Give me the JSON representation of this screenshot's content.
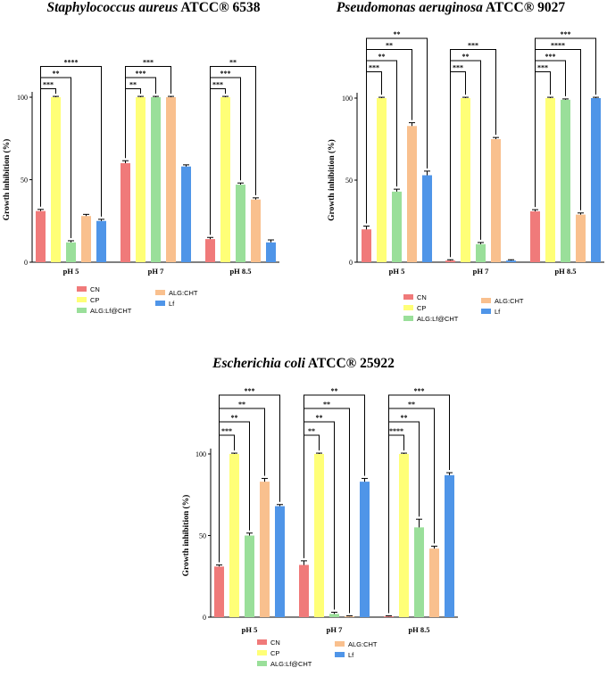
{
  "chart_data": [
    {
      "type": "bar",
      "title_italic": "Staphylococcus aureus",
      "title_plain": " ATCC® 6538",
      "ylabel": "Growth inhibition (%)",
      "ylim": [
        0,
        100
      ],
      "yticks": [
        "0",
        "50",
        "100"
      ],
      "categories": [
        "pH 5",
        "pH 7",
        "pH 8.5"
      ],
      "series": [
        {
          "name": "CN",
          "color": "#f07a7a",
          "values": [
            31,
            60,
            14
          ],
          "errors": [
            1,
            1.5,
            1
          ]
        },
        {
          "name": "CP",
          "color": "#ffff77",
          "values": [
            100,
            100,
            100
          ],
          "errors": [
            0.5,
            0.5,
            0.5
          ]
        },
        {
          "name": "ALG:Lf@CHT",
          "color": "#9adf9a",
          "values": [
            12,
            100,
            47
          ],
          "errors": [
            1,
            0.5,
            1
          ]
        },
        {
          "name": "ALG:CHT",
          "color": "#f9c08e",
          "values": [
            28,
            100,
            38
          ],
          "errors": [
            1,
            0.5,
            1
          ]
        },
        {
          "name": "Lf",
          "color": "#4f95e8",
          "values": [
            25,
            58,
            12
          ],
          "errors": [
            1,
            1,
            1.5
          ]
        }
      ],
      "significance": [
        [
          {
            "to": 1,
            "label": "***"
          },
          {
            "to": 2,
            "label": "**"
          },
          {
            "to": 4,
            "label": "****"
          }
        ],
        [
          {
            "to": 1,
            "label": "**"
          },
          {
            "to": 2,
            "label": "***"
          },
          {
            "to": 3,
            "label": "***"
          }
        ],
        [
          {
            "to": 1,
            "label": "***"
          },
          {
            "to": 2,
            "label": "***"
          },
          {
            "to": 3,
            "label": "**"
          }
        ]
      ],
      "legend_labels": [
        "CN",
        "CP",
        "ALG:Lf@CHT",
        "ALG:CHT",
        "Lf"
      ]
    },
    {
      "type": "bar",
      "title_italic": "Pseudomonas aeruginosa",
      "title_plain": " ATCC® 9027",
      "ylabel": "Growth inhibition (%)",
      "ylim": [
        0,
        100
      ],
      "yticks": [
        "0",
        "50",
        "100"
      ],
      "categories": [
        "pH 5",
        "pH 7",
        "pH 8.5"
      ],
      "series": [
        {
          "name": "CN",
          "color": "#f07a7a",
          "values": [
            20,
            1,
            31
          ],
          "errors": [
            2,
            0.5,
            1
          ]
        },
        {
          "name": "CP",
          "color": "#ffff77",
          "values": [
            100,
            100,
            100
          ],
          "errors": [
            0.5,
            0.5,
            0.5
          ]
        },
        {
          "name": "ALG:Lf@CHT",
          "color": "#9adf9a",
          "values": [
            43,
            11,
            99
          ],
          "errors": [
            1.5,
            1,
            0.5
          ]
        },
        {
          "name": "ALG:CHT",
          "color": "#f9c08e",
          "values": [
            83,
            75,
            29
          ],
          "errors": [
            2,
            1,
            1
          ]
        },
        {
          "name": "Lf",
          "color": "#4f95e8",
          "values": [
            53,
            1,
            100
          ],
          "errors": [
            2.5,
            0.5,
            0.5
          ]
        }
      ],
      "significance": [
        [
          {
            "to": 1,
            "label": "***"
          },
          {
            "to": 2,
            "label": "**"
          },
          {
            "to": 3,
            "label": "**"
          },
          {
            "to": 4,
            "label": "**"
          }
        ],
        [
          {
            "to": 1,
            "label": "***"
          },
          {
            "to": 2,
            "label": "**"
          },
          {
            "to": 3,
            "label": "***"
          }
        ],
        [
          {
            "to": 1,
            "label": "***"
          },
          {
            "to": 2,
            "label": "***"
          },
          {
            "to": 3,
            "label": "****"
          },
          {
            "to": 4,
            "label": "***"
          }
        ]
      ],
      "legend_labels": [
        "CN",
        "CP",
        "ALG:Lf@CHT",
        "ALG:CHT",
        "Lf"
      ]
    },
    {
      "type": "bar",
      "title_italic": "Escherichia coli",
      "title_plain": " ATCC® 25922",
      "ylabel": "Growth inhibition (%)",
      "ylim": [
        0,
        100
      ],
      "yticks": [
        "0",
        "50",
        "100"
      ],
      "categories": [
        "pH 5",
        "pH 7",
        "pH 8.5"
      ],
      "series": [
        {
          "name": "CN",
          "color": "#f07a7a",
          "values": [
            31,
            32,
            0.5
          ],
          "errors": [
            1,
            2.5,
            0.3
          ]
        },
        {
          "name": "CP",
          "color": "#ffff77",
          "values": [
            100,
            100,
            100
          ],
          "errors": [
            0.5,
            0.5,
            0.5
          ]
        },
        {
          "name": "ALG:Lf@CHT",
          "color": "#9adf9a",
          "values": [
            50,
            2,
            55
          ],
          "errors": [
            1.5,
            1,
            5
          ]
        },
        {
          "name": "ALG:CHT",
          "color": "#f9c08e",
          "values": [
            83,
            0.5,
            42
          ],
          "errors": [
            2,
            0.3,
            1.5
          ]
        },
        {
          "name": "Lf",
          "color": "#4f95e8",
          "values": [
            68,
            83,
            87
          ],
          "errors": [
            1,
            2,
            1.5
          ]
        }
      ],
      "significance": [
        [
          {
            "to": 1,
            "label": "***"
          },
          {
            "to": 2,
            "label": "**"
          },
          {
            "to": 3,
            "label": "**"
          },
          {
            "to": 4,
            "label": "***"
          }
        ],
        [
          {
            "to": 1,
            "label": "**"
          },
          {
            "to": 2,
            "label": "**"
          },
          {
            "to": 3,
            "label": "**"
          },
          {
            "to": 4,
            "label": "**"
          }
        ],
        [
          {
            "to": 1,
            "label": "****"
          },
          {
            "to": 2,
            "label": "**"
          },
          {
            "to": 3,
            "label": "**"
          },
          {
            "to": 4,
            "label": "***"
          }
        ]
      ],
      "legend_labels": [
        "CN",
        "CP",
        "ALG:Lf@CHT",
        "ALG:CHT",
        "Lf"
      ]
    }
  ]
}
